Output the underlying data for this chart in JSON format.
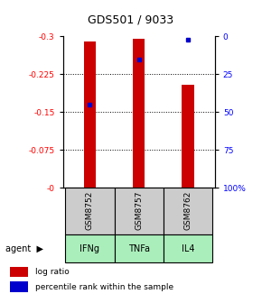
{
  "title": "GDS501 / 9033",
  "samples": [
    "GSM8752",
    "GSM8757",
    "GSM8762"
  ],
  "agents": [
    "IFNg",
    "TNFa",
    "IL4"
  ],
  "log_ratios": [
    -0.29,
    -0.295,
    -0.205
  ],
  "percentile_ranks": [
    0.45,
    0.15,
    0.02
  ],
  "ylim_left": [
    0.0,
    -0.3
  ],
  "yticks_left": [
    0.0,
    -0.075,
    -0.15,
    -0.225,
    -0.3
  ],
  "ytick_labels_left": [
    "-0",
    "-0.075",
    "-0.15",
    "-0.225",
    "-0.3"
  ],
  "yticks_right": [
    0.0,
    0.25,
    0.5,
    0.75,
    1.0
  ],
  "ytick_labels_right": [
    "100%",
    "75",
    "50",
    "25",
    "0"
  ],
  "bar_color": "#cc0000",
  "marker_color": "#0000cc",
  "agent_bg_color": "#aaeebb",
  "sample_bg_color": "#cccccc",
  "bar_width": 0.25,
  "legend_log_ratio": "log ratio",
  "legend_percentile": "percentile rank within the sample"
}
